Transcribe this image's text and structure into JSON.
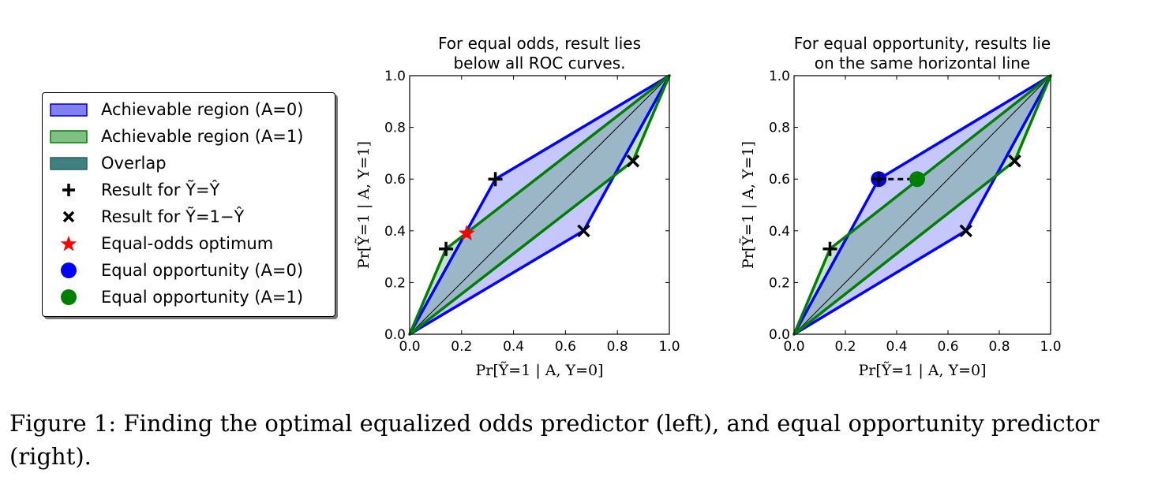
{
  "figure": {
    "caption_line1": "Figure 1: Finding the optimal equalized odds predictor (left), and equal opportunity predictor",
    "caption_line2": "(right)."
  },
  "legend": {
    "items": [
      {
        "label": "Achievable region (A=0)",
        "symbol": "patch",
        "color": "#8080f0"
      },
      {
        "label": "Achievable region (A=1)",
        "symbol": "patch",
        "color": "#80c080"
      },
      {
        "label": "Overlap",
        "symbol": "patch",
        "color": "#3f8080"
      },
      {
        "label": "Result for Ỹ=Ŷ",
        "symbol": "plus",
        "color": "#000000"
      },
      {
        "label": "Result for Ỹ=1−Ŷ",
        "symbol": "x",
        "color": "#000000"
      },
      {
        "label": "Equal-odds optimum",
        "symbol": "star",
        "color": "#ff0000"
      },
      {
        "label": "Equal opportunity (A=0)",
        "symbol": "circle",
        "color": "#0000ff"
      },
      {
        "label": "Equal opportunity (A=1)",
        "symbol": "circle",
        "color": "#008000"
      }
    ]
  },
  "chart_data": [
    {
      "type": "line",
      "title": "For equal odds, result lies below all ROC curves.",
      "title_lines": [
        "For equal odds, result lies",
        "below all ROC curves."
      ],
      "xlabel": "Pr[Ỹ=1 | A, Y=0]",
      "ylabel": "Pr[Ỹ=1 | A, Y=1]",
      "xlim": [
        0,
        1
      ],
      "ylim": [
        0,
        1
      ],
      "xticks": [
        "0.0",
        "0.2",
        "0.4",
        "0.6",
        "0.8",
        "1.0"
      ],
      "yticks": [
        "0.0",
        "0.2",
        "0.4",
        "0.6",
        "0.8",
        "1.0"
      ],
      "series": [
        {
          "name": "Achievable region (A=0)",
          "color": "#0000ff",
          "x": [
            0,
            0.33,
            1,
            0.67,
            0
          ],
          "y": [
            0,
            0.6,
            1,
            0.4,
            0
          ]
        },
        {
          "name": "Achievable region (A=1)",
          "color": "#008000",
          "x": [
            0,
            0.14,
            1,
            0.86,
            0
          ],
          "y": [
            0,
            0.33,
            1,
            0.67,
            0
          ]
        }
      ],
      "plus_points": [
        [
          0.33,
          0.6
        ],
        [
          0.14,
          0.33
        ]
      ],
      "x_points": [
        [
          0.67,
          0.4
        ],
        [
          0.86,
          0.67
        ]
      ],
      "star_point": [
        0.22,
        0.39
      ]
    },
    {
      "type": "line",
      "title": "For equal opportunity, results lie on the same horizontal line",
      "title_lines": [
        "For equal opportunity, results lie",
        "on the same horizontal line"
      ],
      "xlabel": "Pr[Ỹ=1 | A, Y=0]",
      "ylabel": "Pr[Ỹ=1 | A, Y=1]",
      "xlim": [
        0,
        1
      ],
      "ylim": [
        0,
        1
      ],
      "xticks": [
        "0.0",
        "0.2",
        "0.4",
        "0.6",
        "0.8",
        "1.0"
      ],
      "yticks": [
        "0.0",
        "0.2",
        "0.4",
        "0.6",
        "0.8",
        "1.0"
      ],
      "series": [
        {
          "name": "Achievable region (A=0)",
          "color": "#0000ff",
          "x": [
            0,
            0.33,
            1,
            0.67,
            0
          ],
          "y": [
            0,
            0.6,
            1,
            0.4,
            0
          ]
        },
        {
          "name": "Achievable region (A=1)",
          "color": "#008000",
          "x": [
            0,
            0.14,
            1,
            0.86,
            0
          ],
          "y": [
            0,
            0.33,
            1,
            0.67,
            0
          ]
        }
      ],
      "plus_points": [
        [
          0.33,
          0.6
        ],
        [
          0.14,
          0.33
        ]
      ],
      "x_points": [
        [
          0.67,
          0.4
        ],
        [
          0.86,
          0.67
        ]
      ],
      "circle_points": [
        {
          "x": 0.33,
          "y": 0.6,
          "color": "#0000ff"
        },
        {
          "x": 0.48,
          "y": 0.6,
          "color": "#008000"
        }
      ]
    }
  ]
}
